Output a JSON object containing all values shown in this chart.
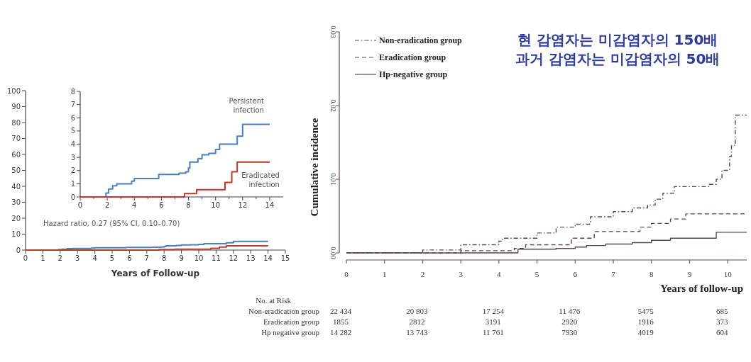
{
  "chart_data": [
    {
      "type": "step",
      "xlabel": "Years of Follow-up",
      "xlim": [
        0,
        15
      ],
      "ylim": [
        0,
        100
      ],
      "xticks": [
        0,
        1,
        2,
        3,
        4,
        5,
        6,
        7,
        8,
        9,
        10,
        11,
        12,
        13,
        14,
        15
      ],
      "yticks": [
        0,
        10,
        20,
        30,
        40,
        50,
        60,
        70,
        80,
        90,
        100
      ],
      "grid": false,
      "legend": false,
      "annotations": [
        "Hazard ratio, 0.27 (95% CI, 0.10–0.70)"
      ],
      "series": [
        {
          "color": "#4a7fc1",
          "x": [
            0,
            1.9,
            2.1,
            2.4,
            2.7,
            3.8,
            4.0,
            5.8,
            7.3,
            7.8,
            8.0,
            8.1,
            8.7,
            9.0,
            9.5,
            10.0,
            10.3,
            11.6,
            12.0,
            14.0
          ],
          "values": [
            0,
            0.3,
            0.6,
            0.9,
            1.0,
            1.2,
            1.4,
            1.7,
            1.8,
            1.9,
            2.2,
            2.7,
            2.9,
            3.2,
            3.3,
            3.6,
            4.0,
            4.6,
            5.5,
            5.5
          ]
        },
        {
          "color": "#c0392b",
          "x": [
            0,
            7.7,
            8.6,
            10.7,
            11.2,
            11.6,
            14.0
          ],
          "values": [
            0,
            0.3,
            0.6,
            1.1,
            1.9,
            2.7,
            2.7
          ]
        }
      ]
    },
    {
      "type": "step",
      "xlim": [
        0,
        15
      ],
      "ylim": [
        0,
        8
      ],
      "xticks": [
        0,
        {
          "value": 1,
          "label": null
        },
        2,
        {
          "value": 3,
          "label": null
        },
        4,
        {
          "value": 5,
          "label": null
        },
        6,
        {
          "value": 7,
          "label": null
        },
        8,
        {
          "value": 9,
          "label": null
        },
        10,
        {
          "value": 11,
          "label": null
        },
        12,
        {
          "value": 13,
          "label": null
        },
        14
      ],
      "yticks": [
        0,
        1,
        2,
        3,
        4,
        5,
        6,
        7,
        8
      ],
      "grid": false,
      "legend": false,
      "series": [
        {
          "name": "Persistent infection",
          "color": "#4a7fc1",
          "x": [
            0,
            1.9,
            2.1,
            2.4,
            2.7,
            3.8,
            4.0,
            5.8,
            7.3,
            7.8,
            8.0,
            8.1,
            8.7,
            9.0,
            9.5,
            10.0,
            10.3,
            11.6,
            12.0,
            14.0
          ],
          "values": [
            0,
            0.3,
            0.6,
            0.85,
            1.0,
            1.2,
            1.4,
            1.7,
            1.8,
            1.9,
            2.2,
            2.65,
            2.9,
            3.2,
            3.3,
            3.6,
            4.0,
            4.6,
            5.5,
            5.5
          ]
        },
        {
          "name": "Eradicated infection",
          "color": "#c0392b",
          "x": [
            0,
            7.7,
            8.6,
            10.7,
            11.2,
            11.6,
            14.0
          ],
          "values": [
            0,
            0.25,
            0.55,
            1.1,
            1.9,
            2.65,
            2.65
          ]
        }
      ]
    },
    {
      "type": "step",
      "xlabel": "Years of follow-up",
      "ylabel": "Cumulative incidence",
      "xlim": [
        0,
        10.5
      ],
      "ylim": [
        0,
        0.03
      ],
      "xticks": [
        0,
        1,
        2,
        3,
        4,
        5,
        6,
        7,
        8,
        9,
        10
      ],
      "yticks": [
        {
          "value": 0,
          "label": "0.00"
        },
        {
          "value": 0.01,
          "label": "0.01"
        },
        {
          "value": 0.02,
          "label": "0.02"
        },
        {
          "value": 0.03,
          "label": "0.03"
        }
      ],
      "grid": false,
      "legend": "top left",
      "annotations": [
        "현 감염자는 미감염자의 150배",
        "과거 감염자는 미감염자의 50배",
        "No. at Risk",
        "Non-eradication group",
        "22 434",
        "20 803",
        "17 254",
        "11 476",
        "5475",
        "685",
        "Eradication group",
        "1855",
        "2812",
        "3191",
        "2920",
        "1916",
        "373",
        "Hp negative group",
        "14 282",
        "13 743",
        "11 761",
        "7930",
        "4019",
        "604"
      ],
      "series": [
        {
          "name": "Non-eradication group",
          "color": "#5a4a48",
          "line_style": "dashdot",
          "x": [
            0,
            2,
            3,
            4,
            4.1,
            5,
            5.5,
            6,
            6.4,
            7,
            7.5,
            7.9,
            8.1,
            8.3,
            8.6,
            9.5,
            9.7,
            9.85,
            10.05,
            10.1,
            10.2,
            10.5
          ],
          "values": [
            0,
            0.0004,
            0.0011,
            0.0016,
            0.002,
            0.0027,
            0.0035,
            0.0039,
            0.0049,
            0.0056,
            0.0061,
            0.0065,
            0.0073,
            0.0081,
            0.009,
            0.0093,
            0.01,
            0.0112,
            0.0131,
            0.0146,
            0.0187,
            0.0187
          ]
        },
        {
          "name": "Eradication group",
          "color": "#5a4a48",
          "line_style": "dashed",
          "x": [
            0,
            3,
            4.4,
            4.7,
            5.9,
            6.5,
            7.7,
            8,
            8.5,
            8.9,
            10.5
          ],
          "values": [
            0,
            0.0003,
            0.0006,
            0.0011,
            0.002,
            0.0029,
            0.0035,
            0.004,
            0.0046,
            0.0053,
            0.0053
          ]
        },
        {
          "name": "Hp-negative group",
          "color": "#5a4a48",
          "line_style": "solid",
          "x": [
            0,
            4.5,
            5.5,
            6,
            6.3,
            6.8,
            7.5,
            8,
            8.5,
            9.7,
            10.5
          ],
          "values": [
            0,
            0.0005,
            0.0006,
            0.0008,
            0.001,
            0.0012,
            0.0014,
            0.0017,
            0.002,
            0.0028,
            0.0028
          ]
        }
      ]
    }
  ]
}
